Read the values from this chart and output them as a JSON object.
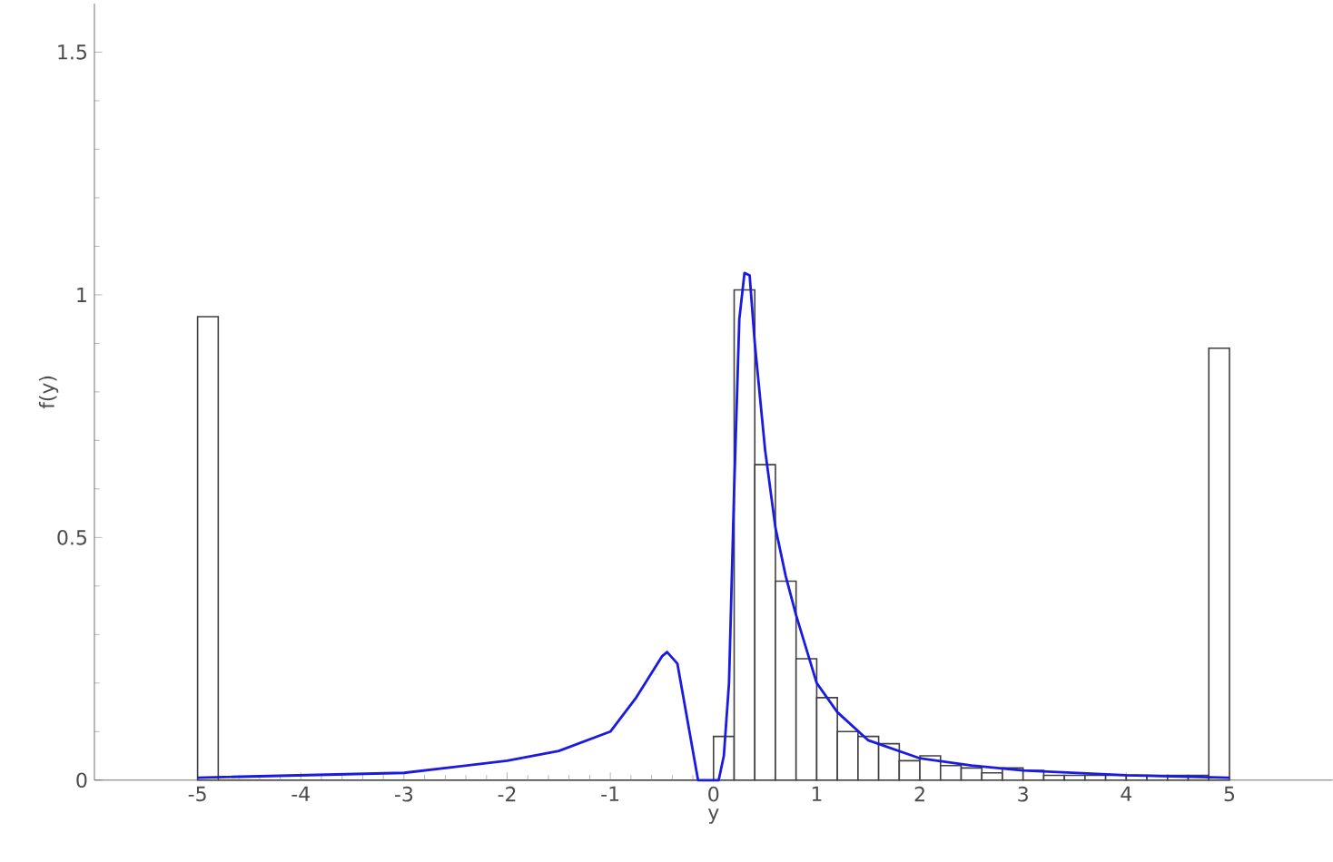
{
  "chart_data": {
    "type": "histogram",
    "xlabel": "y",
    "ylabel": "f(y)",
    "xlim": [
      -6,
      6
    ],
    "ylim": [
      0,
      1.6
    ],
    "xticks": [
      -5,
      -4,
      -3,
      -2,
      -1,
      0,
      1,
      2,
      3,
      4,
      5
    ],
    "yticks": [
      0,
      0.5,
      1,
      1.5
    ],
    "series": [
      {
        "color": "#404040",
        "bins": [
          -5,
          -4.8,
          -4.6,
          -4.4,
          -4.2,
          -4,
          -3.8,
          -3.6,
          -3.4,
          -3.2,
          -3,
          -2.8,
          -2.6,
          -2.4,
          -2.2,
          -2,
          -1.8,
          -1.6,
          -1.4,
          -1.2,
          -1,
          -0.8,
          -0.6,
          -0.4,
          -0.2,
          0,
          0.2,
          0.4,
          0.6,
          0.8,
          1,
          1.2,
          1.4,
          1.6,
          1.8,
          2,
          2.2,
          2.4,
          2.6,
          2.8,
          3,
          3.2,
          3.4,
          3.6,
          3.8,
          4,
          4.2,
          4.4,
          4.6,
          4.8,
          5
        ],
        "values": [
          0.955,
          0,
          0,
          0,
          0,
          0,
          0,
          0,
          0,
          0,
          0,
          0,
          0,
          0,
          0,
          0,
          0,
          0,
          0,
          0,
          0,
          0,
          0,
          0,
          0,
          0.09,
          1.01,
          0.65,
          0.41,
          0.25,
          0.17,
          0.1,
          0.09,
          0.075,
          0.04,
          0.05,
          0.03,
          0.025,
          0.015,
          0.025,
          0.02,
          0.01,
          0.01,
          0.01,
          0.01,
          0.01,
          0.01,
          0.01,
          0.01,
          0.89
        ]
      },
      {
        "type": "line",
        "color": "#1a1ae0",
        "x": [
          -5,
          -4,
          -3,
          -2,
          -1.5,
          -1,
          -0.75,
          -0.5,
          -0.45,
          -0.35,
          -0.25,
          -0.15,
          0.05,
          0.1,
          0.15,
          0.2,
          0.25,
          0.3,
          0.35,
          0.4,
          0.5,
          0.6,
          0.7,
          0.8,
          1,
          1.2,
          1.5,
          2,
          2.5,
          3,
          4,
          5
        ],
        "values": [
          0.005,
          0.01,
          0.015,
          0.04,
          0.06,
          0.1,
          0.17,
          0.255,
          0.264,
          0.24,
          0.12,
          0,
          0,
          0.05,
          0.2,
          0.6,
          0.95,
          1.045,
          1.04,
          0.9,
          0.68,
          0.52,
          0.42,
          0.34,
          0.2,
          0.14,
          0.082,
          0.045,
          0.03,
          0.02,
          0.01,
          0.005
        ]
      }
    ]
  }
}
